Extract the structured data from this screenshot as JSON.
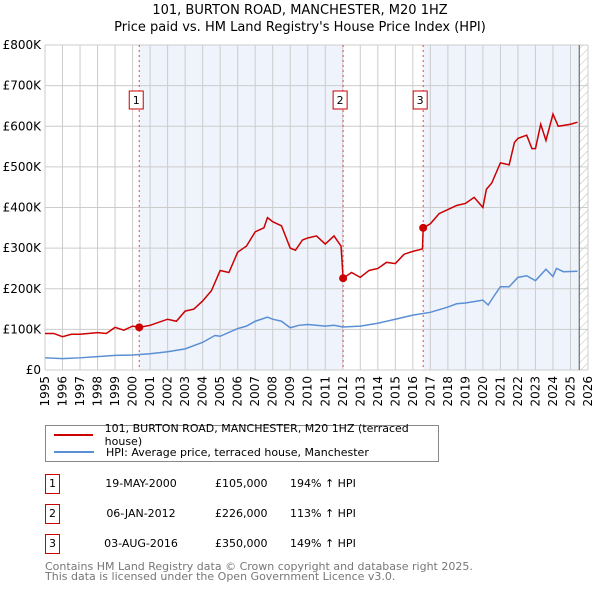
{
  "chart_data": {
    "type": "line",
    "title": "101, BURTON ROAD, MANCHESTER, M20 1HZ",
    "subtitle": "Price paid vs. HM Land Registry's House Price Index (HPI)",
    "xlim": [
      1995,
      2026
    ],
    "ylim": [
      0,
      800000
    ],
    "y_ticks": [
      {
        "v": 0,
        "label": "£0"
      },
      {
        "v": 100000,
        "label": "£100K"
      },
      {
        "v": 200000,
        "label": "£200K"
      },
      {
        "v": 300000,
        "label": "£300K"
      },
      {
        "v": 400000,
        "label": "£400K"
      },
      {
        "v": 500000,
        "label": "£500K"
      },
      {
        "v": 600000,
        "label": "£600K"
      },
      {
        "v": 700000,
        "label": "£700K"
      },
      {
        "v": 800000,
        "label": "£800K"
      }
    ],
    "x_ticks": [
      "1995",
      "1996",
      "1997",
      "1998",
      "1999",
      "2000",
      "2001",
      "2002",
      "2003",
      "2004",
      "2005",
      "2006",
      "2007",
      "2008",
      "2009",
      "2010",
      "2011",
      "2012",
      "2013",
      "2014",
      "2015",
      "2016",
      "2017",
      "2018",
      "2019",
      "2020",
      "2021",
      "2022",
      "2023",
      "2024",
      "2025",
      "2026"
    ],
    "grid": true,
    "series": [
      {
        "name": "101, BURTON ROAD, MANCHESTER, M20 1HZ (terraced house)",
        "color": "#cc0000",
        "x": [
          1995,
          1995.5,
          1996,
          1996.5,
          1997,
          1998,
          1998.5,
          1999,
          1999.5,
          2000,
          2000.38,
          2001,
          2002,
          2002.5,
          2003,
          2003.5,
          2004,
          2004.5,
          2005,
          2005.5,
          2006,
          2006.5,
          2007,
          2007.5,
          2007.7,
          2008,
          2008.5,
          2009,
          2009.3,
          2009.7,
          2010,
          2010.5,
          2011,
          2011.5,
          2011.9,
          2012.02,
          2012.5,
          2013,
          2013.5,
          2014,
          2014.5,
          2015,
          2015.5,
          2016,
          2016.55,
          2016.59,
          2017,
          2017.5,
          2018,
          2018.5,
          2019,
          2019.5,
          2020,
          2020.2,
          2020.5,
          2021,
          2021.5,
          2021.8,
          2022,
          2022.5,
          2022.8,
          2023,
          2023.3,
          2023.6,
          2024,
          2024.3,
          2025,
          2025.4
        ],
        "y": [
          90000,
          90000,
          82000,
          88000,
          88000,
          92000,
          90000,
          105000,
          98000,
          108000,
          105000,
          110000,
          125000,
          120000,
          145000,
          150000,
          170000,
          195000,
          245000,
          240000,
          290000,
          305000,
          340000,
          350000,
          375000,
          365000,
          355000,
          300000,
          295000,
          320000,
          325000,
          330000,
          310000,
          330000,
          305000,
          226000,
          240000,
          228000,
          245000,
          250000,
          265000,
          262000,
          285000,
          292000,
          298000,
          350000,
          360000,
          385000,
          395000,
          405000,
          410000,
          425000,
          400000,
          445000,
          460000,
          510000,
          505000,
          560000,
          570000,
          578000,
          545000,
          545000,
          605000,
          565000,
          630000,
          600000,
          605000,
          610000
        ]
      },
      {
        "name": "HPI: Average price, terraced house, Manchester",
        "color": "#5b8fd4",
        "x": [
          1995,
          1996,
          1997,
          1998,
          1999,
          2000,
          2001,
          2002,
          2003,
          2004,
          2004.7,
          2005,
          2006,
          2006.5,
          2007,
          2007.7,
          2008,
          2008.5,
          2009,
          2009.5,
          2010,
          2011,
          2011.5,
          2012,
          2013,
          2014,
          2015,
          2016,
          2017,
          2018,
          2018.5,
          2019,
          2020,
          2020.3,
          2020.6,
          2021,
          2021.5,
          2022,
          2022.5,
          2023,
          2023.6,
          2024,
          2024.2,
          2024.6,
          2025.4
        ],
        "y": [
          30000,
          28000,
          30000,
          33000,
          36000,
          37000,
          40000,
          45000,
          52000,
          68000,
          85000,
          83000,
          102000,
          108000,
          120000,
          130000,
          125000,
          120000,
          104000,
          110000,
          112000,
          108000,
          110000,
          106000,
          108000,
          115000,
          125000,
          135000,
          142000,
          155000,
          163000,
          165000,
          172000,
          160000,
          180000,
          205000,
          205000,
          228000,
          232000,
          220000,
          248000,
          230000,
          250000,
          242000,
          243000
        ]
      }
    ],
    "sales": [
      {
        "num": "1",
        "x": 2000.38,
        "y": 105000,
        "date": "19-MAY-2000",
        "price": "£105,000",
        "hpi": "194% ↑ HPI"
      },
      {
        "num": "2",
        "x": 2012.02,
        "y": 226000,
        "date": "06-JAN-2012",
        "price": "£226,000",
        "hpi": "113% ↑ HPI"
      },
      {
        "num": "3",
        "x": 2016.59,
        "y": 350000,
        "date": "03-AUG-2016",
        "price": "£350,000",
        "hpi": "149% ↑ HPI"
      }
    ],
    "forecast_start": 2025.5,
    "shade_color": "#eef3fc"
  },
  "footer": {
    "line1": "Contains HM Land Registry data © Crown copyright and database right 2025.",
    "line2": "This data is licensed under the Open Government Licence v3.0."
  }
}
